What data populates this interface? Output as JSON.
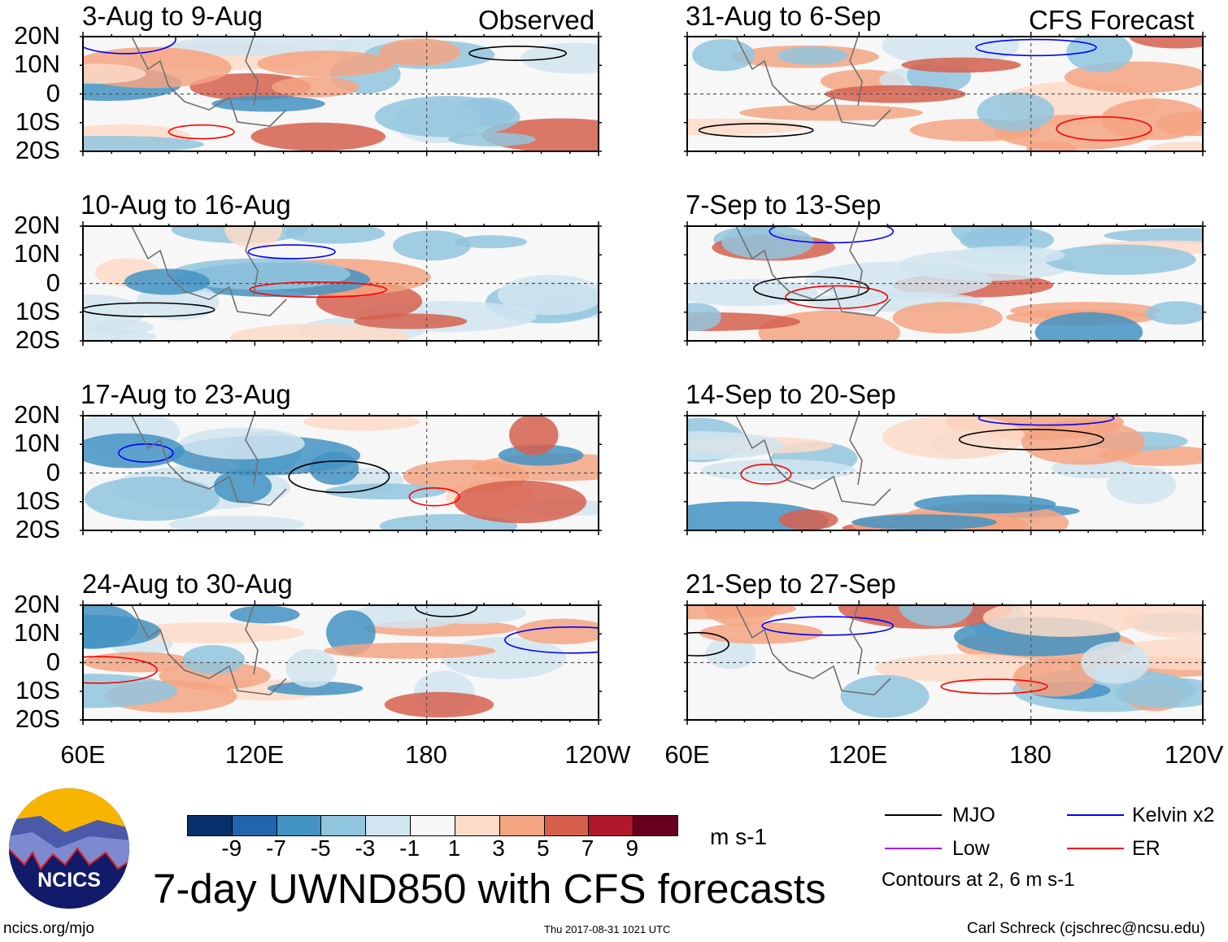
{
  "chart_data": {
    "type": "heatmap",
    "title": "7-day UWND850 with CFS forecasts",
    "variable": "850-hPa zonal wind anomaly",
    "units": "m s-1",
    "panels": [
      {
        "label": "3-Aug to 9-Aug",
        "tag": "Observed",
        "column": "observed"
      },
      {
        "label": "10-Aug to 16-Aug",
        "tag": "",
        "column": "observed"
      },
      {
        "label": "17-Aug to 23-Aug",
        "tag": "",
        "column": "observed"
      },
      {
        "label": "24-Aug to 30-Aug",
        "tag": "",
        "column": "observed"
      },
      {
        "label": "31-Aug to 6-Sep",
        "tag": "CFS Forecast",
        "column": "forecast"
      },
      {
        "label": "7-Sep to 13-Sep",
        "tag": "",
        "column": "forecast"
      },
      {
        "label": "14-Sep to 20-Sep",
        "tag": "",
        "column": "forecast"
      },
      {
        "label": "21-Sep to 27-Sep",
        "tag": "",
        "column": "forecast"
      }
    ],
    "y_ticks": [
      "20N",
      "10N",
      "0",
      "10S",
      "20S"
    ],
    "x_ticks": [
      "60E",
      "120E",
      "180",
      "120W"
    ],
    "x_ticks_right": [
      "60E",
      "120E",
      "180",
      "120V"
    ],
    "colorbar": {
      "ticks": [
        "-9",
        "-7",
        "-5",
        "-3",
        "-1",
        "1",
        "3",
        "5",
        "7",
        "9"
      ],
      "colors": [
        "#08306b",
        "#2166ac",
        "#4393c3",
        "#92c5de",
        "#d1e5f0",
        "#f7f7f7",
        "#fddbc7",
        "#f4a582",
        "#d6604d",
        "#b2182b",
        "#67001f"
      ],
      "units": "m s-1"
    },
    "legend": [
      {
        "label": "MJO",
        "color": "#000000"
      },
      {
        "label": "Kelvin x2",
        "color": "#0000ff"
      },
      {
        "label": "Low",
        "color": "#a020f0"
      },
      {
        "label": "ER",
        "color": "#ff0000"
      }
    ],
    "contour_note": "Contours at 2, 6 m s-1"
  },
  "footer": {
    "logo_text": "NCICS",
    "url": "ncics.org/mjo",
    "timestamp": "Thu 2017-08-31 1021 UTC",
    "author": "Carl Schreck (cjschrec@ncsu.edu)"
  }
}
